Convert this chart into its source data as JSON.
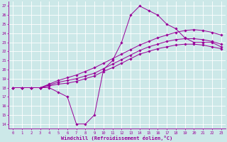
{
  "xlabel": "Windchill (Refroidissement éolien,°C)",
  "bg_color": "#cce8e8",
  "line_color": "#990099",
  "grid_color": "#ffffff",
  "xlim": [
    -0.5,
    23.5
  ],
  "ylim": [
    13.5,
    27.5
  ],
  "xticks": [
    0,
    1,
    2,
    3,
    4,
    5,
    6,
    7,
    8,
    9,
    10,
    11,
    12,
    13,
    14,
    15,
    16,
    17,
    18,
    19,
    20,
    21,
    22,
    23
  ],
  "yticks": [
    14,
    15,
    16,
    17,
    18,
    19,
    20,
    21,
    22,
    23,
    24,
    25,
    26,
    27
  ],
  "series": [
    {
      "x": [
        0,
        1,
        2,
        3,
        4,
        5,
        6,
        7,
        8,
        9,
        10,
        11,
        12,
        13,
        14,
        15,
        16,
        17,
        18,
        19,
        20,
        21,
        22,
        23
      ],
      "y": [
        18,
        18,
        18,
        18,
        18,
        17.5,
        17,
        14,
        14,
        15,
        20,
        21,
        23,
        26,
        27,
        26.5,
        26,
        25,
        24.5,
        23.5,
        23,
        23,
        23,
        22.5
      ]
    },
    {
      "x": [
        0,
        1,
        2,
        3,
        4,
        5,
        6,
        7,
        8,
        9,
        10,
        11,
        12,
        13,
        14,
        15,
        16,
        17,
        18,
        19,
        20,
        21,
        22,
        23
      ],
      "y": [
        18,
        18,
        18,
        18,
        18.2,
        18.4,
        18.5,
        18.7,
        19,
        19.3,
        19.8,
        20.2,
        20.7,
        21.2,
        21.7,
        22.0,
        22.3,
        22.5,
        22.7,
        22.8,
        22.8,
        22.7,
        22.5,
        22.3
      ]
    },
    {
      "x": [
        0,
        1,
        2,
        3,
        4,
        5,
        6,
        7,
        8,
        9,
        10,
        11,
        12,
        13,
        14,
        15,
        16,
        17,
        18,
        19,
        20,
        21,
        22,
        23
      ],
      "y": [
        18,
        18,
        18,
        18,
        18.3,
        18.6,
        18.8,
        19.0,
        19.3,
        19.6,
        20.1,
        20.6,
        21.1,
        21.6,
        22.1,
        22.5,
        22.8,
        23.1,
        23.3,
        23.4,
        23.4,
        23.3,
        23.1,
        22.8
      ]
    },
    {
      "x": [
        0,
        1,
        2,
        3,
        4,
        5,
        6,
        7,
        8,
        9,
        10,
        11,
        12,
        13,
        14,
        15,
        16,
        17,
        18,
        19,
        20,
        21,
        22,
        23
      ],
      "y": [
        18,
        18,
        18,
        18,
        18.4,
        18.8,
        19.1,
        19.4,
        19.8,
        20.2,
        20.7,
        21.2,
        21.7,
        22.2,
        22.7,
        23.1,
        23.5,
        23.8,
        24.1,
        24.3,
        24.4,
        24.3,
        24.1,
        23.8
      ]
    }
  ]
}
